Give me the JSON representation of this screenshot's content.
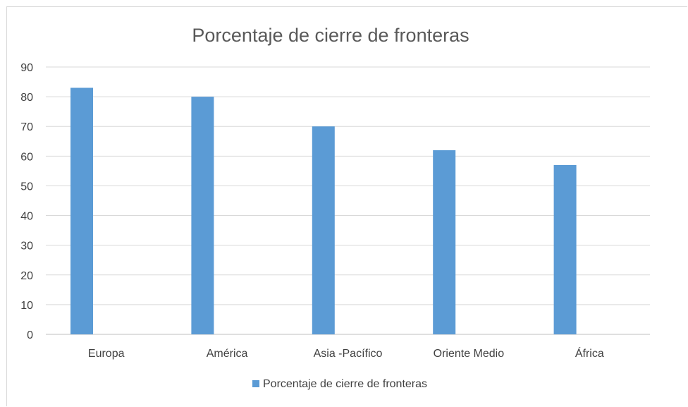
{
  "chart_data": {
    "type": "bar",
    "title": "Porcentaje de cierre de fronteras",
    "categories": [
      "Europa",
      "América",
      "Asia -Pacífico",
      "Oriente Medio",
      "África"
    ],
    "series": [
      {
        "name": "Porcentaje de cierre de fronteras",
        "values": [
          83,
          80,
          70,
          62,
          57
        ],
        "color": "#5b9bd5"
      }
    ],
    "ylim": [
      0,
      90
    ],
    "yticks": [
      "0",
      "10",
      "20",
      "30",
      "40",
      "50",
      "60",
      "70",
      "80",
      "90"
    ],
    "grid": true,
    "legend_position": "bottom"
  }
}
